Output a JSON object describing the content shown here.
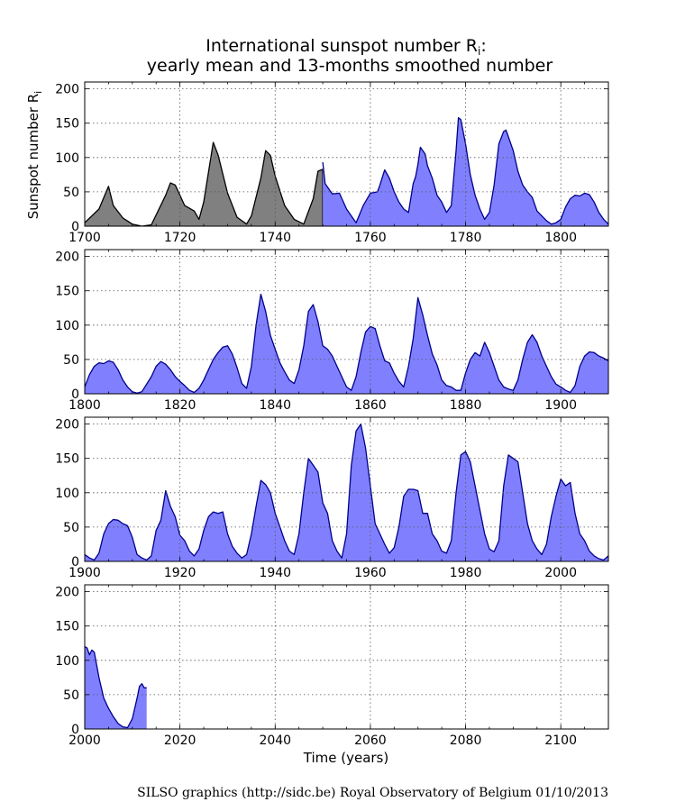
{
  "chart_data": [
    {
      "type": "area",
      "panel": 1,
      "title_line1": "International sunspot number R",
      "title_sub": "i",
      "title_line1_suffix": ":",
      "title_line2": "yearly mean and 13-months smoothed number",
      "ylabel": "Sunspot number R",
      "ylabel_sub": "i",
      "xlim": [
        1700,
        1810
      ],
      "ylim": [
        0,
        210
      ],
      "xticks": [
        1700,
        1720,
        1740,
        1760,
        1780,
        1800
      ],
      "yticks": [
        0,
        50,
        100,
        150,
        200
      ],
      "grid": true,
      "series": [
        {
          "name": "yearly mean",
          "color": "#000000",
          "fill": "#808080",
          "x": [
            1700,
            1703,
            1705,
            1706,
            1708,
            1710,
            1712,
            1714,
            1717,
            1718,
            1719,
            1721,
            1723,
            1724,
            1725,
            1727,
            1728,
            1730,
            1732,
            1734,
            1735,
            1737,
            1738,
            1739,
            1740,
            1742,
            1744,
            1746,
            1748,
            1749,
            1750
          ],
          "y": [
            5,
            25,
            58,
            30,
            12,
            3,
            0,
            2,
            45,
            63,
            60,
            30,
            22,
            10,
            35,
            122,
            104,
            48,
            13,
            3,
            15,
            70,
            110,
            103,
            73,
            30,
            10,
            3,
            40,
            80,
            83
          ]
        },
        {
          "name": "13-months smoothed",
          "color": "#00008b",
          "fill": "#8080ff",
          "x": [
            1750,
            1750.5,
            1752,
            1753.5,
            1755,
            1756.5,
            1757,
            1758.5,
            1760,
            1761.5,
            1762,
            1763,
            1764,
            1765,
            1766,
            1767,
            1768,
            1769,
            1769.5,
            1770,
            1770.5,
            1771.5,
            1772,
            1773,
            1774,
            1775,
            1776,
            1777,
            1778,
            1778.5,
            1779,
            1780,
            1781,
            1782,
            1783,
            1784,
            1785,
            1786,
            1787,
            1788,
            1788.5,
            1789,
            1790,
            1791,
            1792,
            1793,
            1794,
            1795,
            1796,
            1797,
            1798,
            1799,
            1800,
            1801,
            1802,
            1803,
            1804,
            1805,
            1806,
            1807,
            1808,
            1809,
            1810
          ],
          "y": [
            93,
            62,
            47,
            48,
            25,
            10,
            5,
            30,
            48,
            50,
            60,
            82,
            70,
            50,
            35,
            25,
            20,
            62,
            72,
            90,
            115,
            105,
            88,
            70,
            45,
            35,
            20,
            30,
            110,
            158,
            155,
            120,
            75,
            45,
            25,
            10,
            20,
            60,
            120,
            138,
            140,
            130,
            110,
            80,
            60,
            50,
            42,
            22,
            15,
            8,
            3,
            5,
            10,
            28,
            40,
            45,
            44,
            48,
            46,
            35,
            20,
            10,
            3
          ]
        }
      ]
    },
    {
      "type": "area",
      "panel": 2,
      "xlim": [
        1800,
        1910
      ],
      "ylim": [
        0,
        210
      ],
      "xticks": [
        1800,
        1820,
        1840,
        1860,
        1880,
        1900
      ],
      "yticks": [
        0,
        50,
        100,
        150,
        200
      ],
      "grid": true,
      "series": [
        {
          "name": "13-months smoothed",
          "color": "#00008b",
          "fill": "#8080ff",
          "x": [
            1800,
            1801,
            1802,
            1803,
            1804,
            1805,
            1806,
            1807,
            1808,
            1809,
            1810,
            1811,
            1812,
            1814,
            1815,
            1816,
            1817,
            1818,
            1819,
            1820,
            1821,
            1822,
            1823,
            1824,
            1825,
            1826,
            1827,
            1828,
            1829,
            1830,
            1831,
            1832,
            1833,
            1834,
            1835,
            1836,
            1837,
            1838,
            1839,
            1840,
            1841,
            1842,
            1843,
            1844,
            1845,
            1846,
            1847,
            1848,
            1849,
            1850,
            1851,
            1852,
            1853,
            1854,
            1855,
            1856,
            1857,
            1858,
            1859,
            1860,
            1861,
            1862,
            1863,
            1864,
            1865,
            1866,
            1867,
            1868,
            1869,
            1870,
            1871,
            1872,
            1873,
            1874,
            1875,
            1876,
            1877,
            1878,
            1879,
            1880,
            1881,
            1882,
            1883,
            1884,
            1885,
            1886,
            1887,
            1888,
            1889,
            1890,
            1891,
            1892,
            1893,
            1894,
            1895,
            1896,
            1897,
            1898,
            1899,
            1900,
            1901,
            1902,
            1903,
            1904,
            1905,
            1906,
            1907,
            1908,
            1909,
            1910
          ],
          "y": [
            10,
            28,
            40,
            45,
            44,
            48,
            46,
            35,
            20,
            10,
            3,
            1,
            3,
            25,
            40,
            47,
            43,
            35,
            25,
            18,
            12,
            5,
            2,
            8,
            20,
            35,
            50,
            60,
            68,
            70,
            58,
            38,
            15,
            8,
            40,
            100,
            145,
            120,
            85,
            65,
            45,
            32,
            20,
            15,
            35,
            70,
            120,
            130,
            105,
            70,
            65,
            55,
            40,
            25,
            10,
            5,
            25,
            60,
            90,
            98,
            95,
            70,
            48,
            45,
            30,
            18,
            10,
            40,
            80,
            140,
            115,
            85,
            58,
            42,
            20,
            12,
            10,
            5,
            5,
            30,
            50,
            60,
            55,
            75,
            60,
            40,
            20,
            10,
            7,
            5,
            20,
            50,
            75,
            86,
            75,
            55,
            40,
            25,
            14,
            10,
            5,
            2,
            12,
            40,
            55,
            61,
            60,
            55,
            52,
            48
          ]
        }
      ]
    },
    {
      "type": "area",
      "panel": 3,
      "xlim": [
        1900,
        2010
      ],
      "ylim": [
        0,
        210
      ],
      "xticks": [
        1900,
        1920,
        1940,
        1960,
        1980,
        2000
      ],
      "yticks": [
        0,
        50,
        100,
        150,
        200
      ],
      "grid": true,
      "series": [
        {
          "name": "13-months smoothed",
          "color": "#00008b",
          "fill": "#8080ff",
          "x": [
            1900,
            1901,
            1902,
            1903,
            1904,
            1905,
            1906,
            1907,
            1908,
            1909,
            1910,
            1911,
            1912,
            1913,
            1914,
            1915,
            1916,
            1917,
            1918,
            1919,
            1920,
            1921,
            1922,
            1923,
            1924,
            1925,
            1926,
            1927,
            1928,
            1929,
            1930,
            1931,
            1932,
            1933,
            1934,
            1935,
            1936,
            1937,
            1938,
            1939,
            1940,
            1941,
            1942,
            1943,
            1944,
            1945,
            1946,
            1947,
            1948,
            1949,
            1950,
            1951,
            1952,
            1953,
            1954,
            1955,
            1956,
            1957,
            1958,
            1959,
            1960,
            1961,
            1962,
            1963,
            1964,
            1965,
            1966,
            1967,
            1968,
            1969,
            1970,
            1971,
            1972,
            1973,
            1974,
            1975,
            1976,
            1977,
            1978,
            1979,
            1980,
            1981,
            1982,
            1983,
            1984,
            1985,
            1986,
            1987,
            1988,
            1989,
            1990,
            1991,
            1992,
            1993,
            1994,
            1995,
            1996,
            1997,
            1998,
            1999,
            2000,
            2001,
            2002,
            2003,
            2004,
            2005,
            2006,
            2007,
            2008,
            2009,
            2010
          ],
          "y": [
            10,
            5,
            2,
            12,
            40,
            55,
            61,
            60,
            55,
            52,
            35,
            10,
            5,
            2,
            8,
            45,
            60,
            103,
            80,
            65,
            38,
            30,
            15,
            8,
            18,
            45,
            65,
            72,
            70,
            72,
            40,
            22,
            12,
            5,
            10,
            40,
            80,
            118,
            112,
            100,
            70,
            50,
            30,
            15,
            10,
            40,
            100,
            150,
            140,
            130,
            85,
            70,
            30,
            15,
            5,
            40,
            140,
            190,
            200,
            165,
            110,
            55,
            40,
            25,
            12,
            20,
            50,
            95,
            105,
            105,
            103,
            70,
            70,
            40,
            30,
            15,
            12,
            30,
            100,
            155,
            160,
            145,
            110,
            75,
            40,
            18,
            14,
            30,
            110,
            155,
            150,
            145,
            100,
            55,
            30,
            18,
            10,
            25,
            65,
            95,
            120,
            110,
            115,
            70,
            40,
            30,
            15,
            8,
            4,
            2,
            8
          ]
        }
      ]
    },
    {
      "type": "area",
      "panel": 4,
      "xlabel": "Time (years)",
      "xlim": [
        2000,
        2110
      ],
      "ylim": [
        0,
        210
      ],
      "xticks": [
        2000,
        2020,
        2040,
        2060,
        2080,
        2100
      ],
      "yticks": [
        0,
        50,
        100,
        150,
        200
      ],
      "grid": true,
      "series": [
        {
          "name": "13-months smoothed",
          "color": "#00008b",
          "fill": "#8080ff",
          "x": [
            2000,
            2000.5,
            2001,
            2001.5,
            2002,
            2003,
            2004,
            2005,
            2006,
            2007,
            2008,
            2009,
            2010,
            2011,
            2011.5,
            2012,
            2012.5,
            2013
          ],
          "y": [
            120,
            118,
            108,
            115,
            112,
            75,
            45,
            30,
            18,
            8,
            3,
            2,
            15,
            45,
            62,
            66,
            60,
            60
          ]
        }
      ]
    }
  ],
  "credit": "SILSO graphics (http://sidc.be)  Royal Observatory of Belgium  01/10/2013"
}
